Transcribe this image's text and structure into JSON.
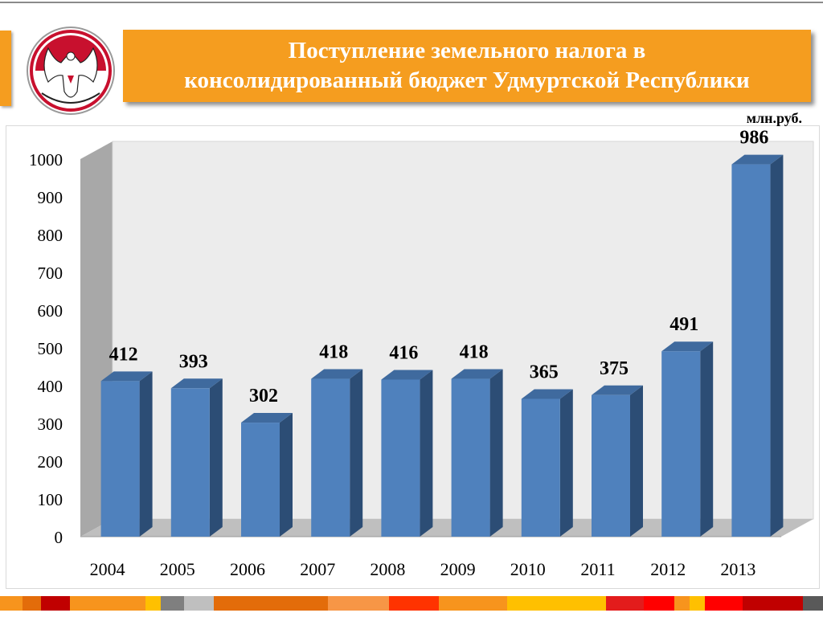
{
  "header": {
    "title_line1": "Поступление земельного налога в",
    "title_line2": "консолидированный бюджет Удмуртской Республики",
    "emblem_icon": "udmurtia-coat-of-arms-icon"
  },
  "chart_data": {
    "type": "bar",
    "title": "Поступление земельного налога в консолидированный бюджет Удмуртской Республики",
    "unit": "млн.руб.",
    "categories": [
      "2004",
      "2005",
      "2006",
      "2007",
      "2008",
      "2009",
      "2010",
      "2011",
      "2012",
      "2013"
    ],
    "values": [
      412,
      393,
      302,
      418,
      416,
      418,
      365,
      375,
      491,
      986
    ],
    "ylim": [
      0,
      1000
    ],
    "yticks": [
      0,
      100,
      200,
      300,
      400,
      500,
      600,
      700,
      800,
      900,
      1000
    ],
    "grid": false,
    "three_d": true,
    "colors": {
      "bar_front": "#4f81bd",
      "bar_side": "#2c4d75",
      "bar_top": "#3f6a9e",
      "wall": "#ececec",
      "wall_side": "#a8a8a8",
      "floor": "#bfbfbf"
    }
  },
  "colors": {
    "accent": "#f59d1f",
    "title_text": "#ffffff"
  },
  "footer_colors": [
    "#f7941d",
    "#e36c0a",
    "#c00000",
    "#f7941d",
    "#ffc000",
    "#7f7f7f",
    "#bfbfbf",
    "#e36c0a",
    "#f79646",
    "#ff3300",
    "#f7941d",
    "#ffc000",
    "#e31c1c",
    "#ff0000",
    "#f7941d",
    "#ffc000",
    "#ff0000",
    "#c00000",
    "#595959"
  ]
}
